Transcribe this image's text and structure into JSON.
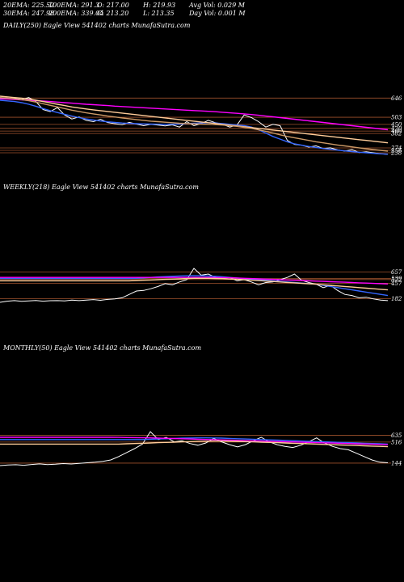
{
  "header": {
    "row1": [
      "20EMA: 225.52",
      "100EMA: 291.3",
      "O: 217.00",
      "H: 219.93",
      "Avg Vol: 0.029 M"
    ],
    "row2": [
      "30EMA: 247.98",
      "200EMA: 339.04",
      "C: 213.20",
      "L: 213.35",
      "Day Vol: 0.001 M"
    ]
  },
  "chart_data": [
    {
      "type": "line",
      "title": "DAILY(250) Eagle  View  541402  charts MunafaSutra.com",
      "price_levels": [
        646,
        503,
        450,
        420,
        400,
        382,
        274,
        256,
        238
      ],
      "level_labels": [
        "646",
        "503",
        "450",
        "420",
        "400",
        "382",
        "274",
        "256",
        "238"
      ],
      "series": [
        {
          "color": "#ffffff",
          "values": [
            646,
            640,
            643,
            636,
            650,
            620,
            560,
            545,
            575,
            520,
            490,
            505,
            480,
            470,
            488,
            463,
            455,
            448,
            465,
            452,
            440,
            450,
            445,
            438,
            446,
            430,
            470,
            440,
            455,
            480,
            462,
            450,
            430,
            445,
            520,
            500,
            470,
            430,
            450,
            440,
            330,
            300,
            295,
            280,
            290,
            270,
            275,
            260,
            250,
            262,
            240,
            246,
            238,
            230,
            226
          ]
        },
        {
          "color": "#3366ff",
          "values": [
            630,
            625,
            620,
            612,
            600,
            585,
            568,
            552,
            538,
            525,
            512,
            500,
            490,
            482,
            475,
            469,
            464,
            460,
            457,
            455,
            453,
            452,
            451,
            450,
            451,
            452,
            455,
            458,
            460,
            462,
            460,
            455,
            450,
            445,
            440,
            430,
            410,
            385,
            360,
            340,
            320,
            305,
            295,
            285,
            278,
            270,
            264,
            258,
            252,
            247,
            242,
            238,
            234,
            230,
            228
          ]
        },
        {
          "color": "#ff00ff",
          "values": [
            640,
            638,
            636,
            633,
            630,
            627,
            624,
            620,
            616,
            612,
            608,
            604,
            600,
            597,
            593,
            590,
            586,
            583,
            580,
            577,
            574,
            571,
            568,
            565,
            562,
            559,
            556,
            553,
            550,
            547,
            544,
            540,
            536,
            532,
            528,
            523,
            518,
            512,
            506,
            500,
            494,
            488,
            482,
            476,
            470,
            464,
            458,
            452,
            446,
            440,
            434,
            428,
            422,
            416,
            410
          ]
        },
        {
          "color": "#ffcc99",
          "values": [
            660,
            655,
            650,
            645,
            638,
            630,
            620,
            610,
            600,
            590,
            580,
            572,
            565,
            558,
            552,
            546,
            540,
            534,
            528,
            522,
            516,
            510,
            504,
            498,
            492,
            486,
            480,
            474,
            468,
            462,
            456,
            450,
            444,
            438,
            432,
            426,
            420,
            414,
            408,
            402,
            396,
            390,
            384,
            378,
            372,
            366,
            360,
            354,
            348,
            342,
            336,
            330,
            324,
            318,
            312
          ]
        },
        {
          "color": "#cc9966",
          "values": [
            650,
            646,
            640,
            634,
            626,
            616,
            604,
            592,
            580,
            568,
            556,
            546,
            536,
            528,
            520,
            512,
            505,
            498,
            492,
            486,
            480,
            474,
            470,
            466,
            462,
            458,
            456,
            454,
            452,
            450,
            448,
            445,
            440,
            435,
            428,
            420,
            410,
            398,
            385,
            372,
            360,
            350,
            340,
            330,
            320,
            312,
            304,
            296,
            289,
            282,
            275,
            268,
            262,
            256,
            250
          ]
        }
      ]
    },
    {
      "type": "line",
      "title": "WEEKLY(218) Eagle  View  541402  charts MunafaSutra.com",
      "price_levels": [
        657,
        539,
        522,
        457,
        182
      ],
      "level_labels": [
        "657",
        "539",
        "522",
        "457",
        "182"
      ],
      "series": [
        {
          "color": "#ffffff",
          "values": [
            120,
            140,
            150,
            138,
            145,
            152,
            140,
            148,
            150,
            145,
            158,
            150,
            160,
            168,
            155,
            172,
            180,
            200,
            260,
            320,
            330,
            360,
            400,
            450,
            430,
            480,
            520,
            720,
            600,
            620,
            560,
            545,
            560,
            500,
            520,
            480,
            430,
            470,
            480,
            520,
            560,
            620,
            510,
            470,
            440,
            380,
            420,
            330,
            260,
            240,
            200,
            210,
            180,
            160,
            150
          ]
        },
        {
          "color": "#3366ff",
          "values": [
            540,
            540,
            540,
            540,
            540,
            540,
            540,
            540,
            540,
            540,
            540,
            540,
            540,
            540,
            540,
            540,
            540,
            540,
            540,
            545,
            552,
            560,
            568,
            575,
            580,
            585,
            588,
            590,
            588,
            585,
            580,
            570,
            560,
            550,
            540,
            530,
            520,
            510,
            500,
            490,
            480,
            470,
            460,
            450,
            440,
            420,
            400,
            380,
            360,
            340,
            320,
            300,
            280,
            260,
            240
          ]
        },
        {
          "color": "#ff00ff",
          "values": [
            560,
            560,
            560,
            560,
            560,
            560,
            560,
            560,
            560,
            560,
            560,
            560,
            560,
            560,
            560,
            560,
            560,
            560,
            560,
            560,
            560,
            560,
            560,
            560,
            560,
            560,
            560,
            560,
            560,
            560,
            558,
            556,
            554,
            550,
            545,
            540,
            535,
            530,
            525,
            520,
            515,
            510,
            505,
            500,
            495,
            490,
            485,
            480,
            475,
            470,
            465,
            460,
            455,
            450,
            445
          ]
        },
        {
          "color": "#ffcc99",
          "values": [
            500,
            500,
            500,
            500,
            500,
            500,
            500,
            500,
            500,
            500,
            500,
            500,
            500,
            500,
            500,
            500,
            500,
            500,
            500,
            505,
            510,
            515,
            520,
            525,
            530,
            535,
            540,
            545,
            545,
            545,
            542,
            538,
            532,
            526,
            520,
            512,
            504,
            496,
            488,
            480,
            472,
            464,
            456,
            448,
            440,
            430,
            420,
            410,
            400,
            390,
            380,
            370,
            360,
            350,
            340
          ]
        }
      ]
    },
    {
      "type": "line",
      "title": "MONTHLY(50) Eagle  View  541402  charts MunafaSutra.com",
      "price_levels": [
        635,
        516,
        144
      ],
      "level_labels": [
        "635",
        "516",
        "144"
      ],
      "series": [
        {
          "color": "#ffffff",
          "values": [
            100,
            110,
            115,
            105,
            120,
            130,
            118,
            125,
            135,
            128,
            140,
            150,
            160,
            175,
            200,
            260,
            330,
            400,
            480,
            700,
            560,
            600,
            520,
            540,
            490,
            460,
            500,
            580,
            520,
            470,
            430,
            470,
            540,
            600,
            520,
            470,
            440,
            420,
            460,
            520,
            590,
            500,
            440,
            400,
            380,
            320,
            260,
            200,
            160,
            150
          ]
        },
        {
          "color": "#3366ff",
          "values": [
            560,
            560,
            560,
            560,
            560,
            560,
            560,
            560,
            560,
            560,
            560,
            560,
            560,
            560,
            560,
            560,
            560,
            560,
            560,
            565,
            570,
            575,
            580,
            585,
            588,
            590,
            590,
            588,
            585,
            580,
            575,
            570,
            565,
            560,
            555,
            550,
            545,
            540,
            535,
            530,
            525,
            520,
            515,
            510,
            505,
            500,
            495,
            490,
            485,
            480
          ]
        },
        {
          "color": "#ff00ff",
          "values": [
            600,
            600,
            600,
            600,
            600,
            600,
            600,
            600,
            600,
            600,
            600,
            600,
            600,
            600,
            600,
            598,
            596,
            594,
            592,
            590,
            586,
            582,
            578,
            574,
            570,
            566,
            562,
            558,
            554,
            550,
            546,
            542,
            538,
            534,
            530,
            526,
            522,
            518,
            514,
            510,
            506,
            502,
            498,
            494,
            490,
            486,
            482,
            478,
            474,
            470
          ]
        },
        {
          "color": "#ffcc99",
          "values": [
            480,
            480,
            480,
            480,
            480,
            480,
            480,
            480,
            480,
            480,
            480,
            480,
            480,
            480,
            480,
            480,
            485,
            490,
            495,
            500,
            505,
            510,
            515,
            520,
            525,
            530,
            532,
            534,
            534,
            532,
            528,
            524,
            520,
            515,
            510,
            505,
            500,
            495,
            490,
            485,
            480,
            475,
            470,
            465,
            460,
            455,
            450,
            445,
            440,
            435
          ]
        }
      ]
    }
  ]
}
